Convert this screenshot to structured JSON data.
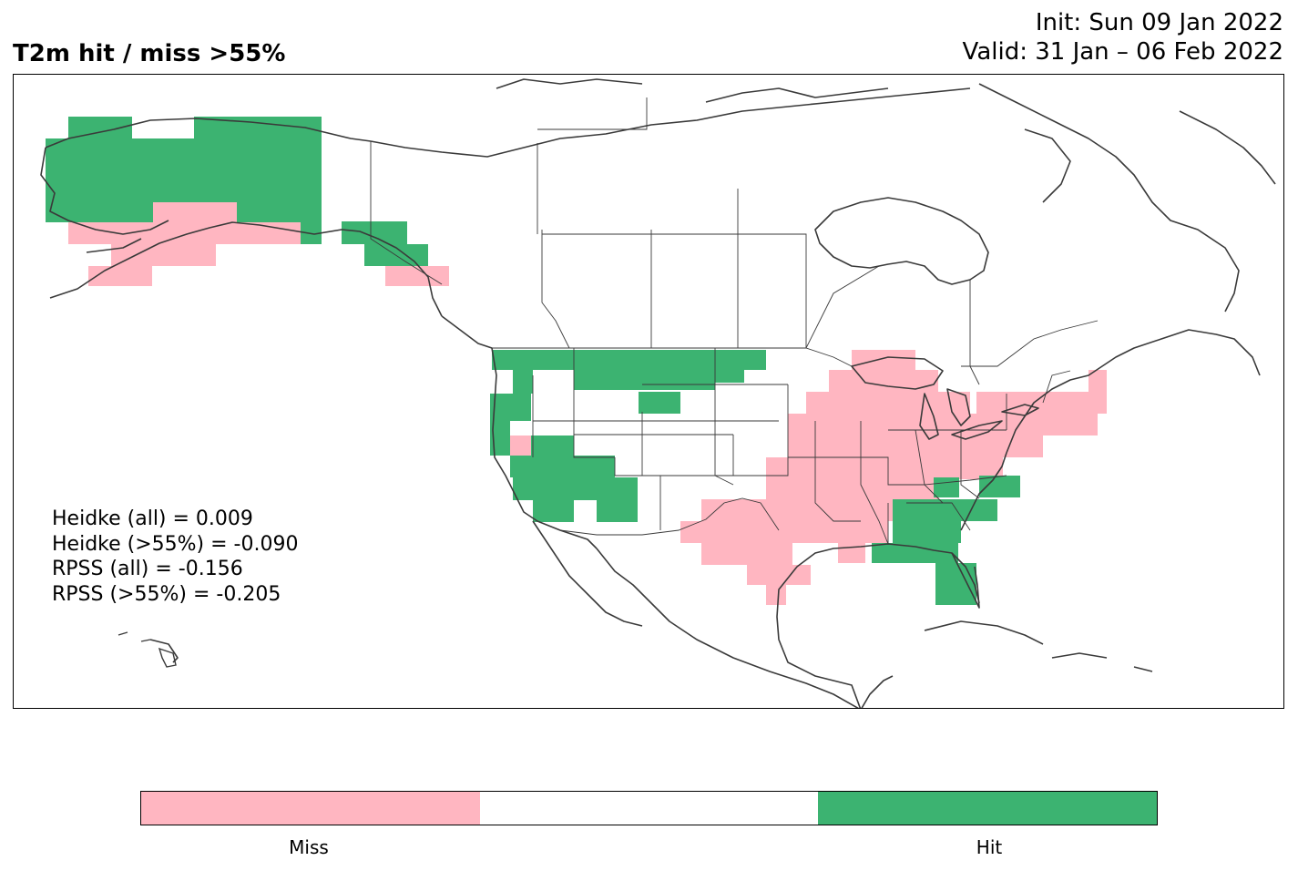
{
  "title": "T2m hit / miss  >55%",
  "init": "Init: Sun 09 Jan 2022",
  "valid": "Valid: 31 Jan – 06 Feb 2022",
  "stats": [
    "Heidke (all) = 0.009",
    "Heidke (>55%) = -0.090",
    "RPSS (all) = -0.156",
    "RPSS (>55%) = -0.205"
  ],
  "colors": {
    "miss": "#ffb6c1",
    "neutral": "#ffffff",
    "hit": "#3cb371",
    "coast": "#3a3a3a"
  },
  "colorbar": {
    "segments": [
      "Miss",
      "",
      "Hit"
    ],
    "labels": [
      "Miss",
      "Hit"
    ]
  }
}
